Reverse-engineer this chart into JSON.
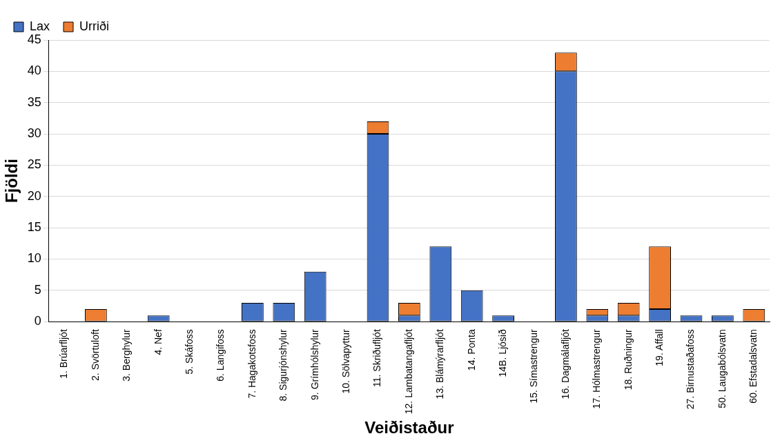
{
  "chart_data": {
    "type": "bar",
    "xlabel": "Veiðistaður",
    "ylabel": "Fjöldi",
    "categories": [
      "1. Brúarfljót",
      "2. Svörtuloft",
      "3. Berghylur",
      "4. Nef",
      "5. Skáfoss",
      "6. Langifoss",
      "7. Hagakotsfoss",
      "8. Sigurjónshylur",
      "9. Grímhólshylur",
      "10. Sölvapyttur",
      "11. Skriðufljót",
      "12. Lambatangafljót",
      "13. Blámýrarfljót",
      "14. Ponta",
      "14B. Ljósið",
      "15. Símastrengur",
      "16. Dagmálafljót",
      "17. Hólmastrengur",
      "18. Ruðningur",
      "19. Affall",
      "27. Birnustaðafoss",
      "50. Laugabólsvatn",
      "60. Efstadalsvatn"
    ],
    "stacked": true,
    "ylim": [
      0,
      45
    ],
    "yticks": [
      0,
      5,
      10,
      15,
      20,
      25,
      30,
      35,
      40,
      45
    ],
    "grid": "y",
    "legend": "top left",
    "series": [
      {
        "name": "Lax",
        "color": "#4472c4",
        "values": [
          0,
          0,
          0,
          1,
          0,
          0,
          3,
          3,
          8,
          0,
          30,
          1,
          12,
          5,
          1,
          0,
          40,
          1,
          1,
          2,
          1,
          1,
          0
        ]
      },
      {
        "name": "Urriði",
        "color": "#ed7d31",
        "values": [
          0,
          2,
          0,
          0,
          0,
          0,
          0,
          0,
          0,
          0,
          2,
          2,
          0,
          0,
          0,
          0,
          3,
          1,
          2,
          10,
          0,
          0,
          2
        ]
      }
    ]
  }
}
